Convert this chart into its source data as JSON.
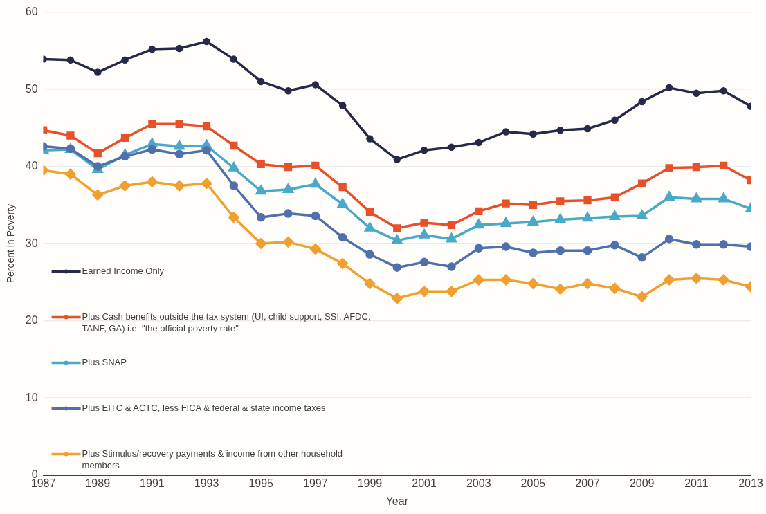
{
  "chart_data": {
    "type": "line",
    "xlabel": "Year",
    "ylabel": "Percent in Poverty",
    "x": [
      1987,
      1988,
      1989,
      1990,
      1991,
      1992,
      1993,
      1994,
      1995,
      1996,
      1997,
      1998,
      1999,
      2000,
      2001,
      2002,
      2003,
      2004,
      2005,
      2006,
      2007,
      2008,
      2009,
      2010,
      2011,
      2012,
      2013
    ],
    "xlim": [
      1987,
      2013
    ],
    "xticks": [
      1987,
      1989,
      1991,
      1993,
      1995,
      1997,
      1999,
      2001,
      2003,
      2005,
      2007,
      2009,
      2011,
      2013
    ],
    "ylim": [
      0,
      60
    ],
    "yticks": [
      0,
      10,
      20,
      30,
      40,
      50,
      60
    ],
    "grid": "y",
    "legend": "bottom left",
    "series": [
      {
        "name": "Earned Income Only",
        "color": "#262a47",
        "marker": "circle",
        "values": [
          53.9,
          53.8,
          52.2,
          53.8,
          55.2,
          55.3,
          56.2,
          53.9,
          51.0,
          49.8,
          50.6,
          47.9,
          43.6,
          40.9,
          42.1,
          42.5,
          43.1,
          44.5,
          44.2,
          44.7,
          44.9,
          46.0,
          48.4,
          50.2,
          49.5,
          49.8,
          47.8
        ]
      },
      {
        "name": "Plus Cash benefits outside the tax system (UI, child support, SSI, AFDC, TANF, GA) i.e. \"the official poverty rate\"",
        "color": "#e8502a",
        "marker": "square",
        "values": [
          44.7,
          44.0,
          41.7,
          43.7,
          45.5,
          45.5,
          45.2,
          42.7,
          40.3,
          39.9,
          40.1,
          37.3,
          34.1,
          32.0,
          32.7,
          32.4,
          34.2,
          35.2,
          35.0,
          35.5,
          35.6,
          36.0,
          37.8,
          39.8,
          39.9,
          40.1,
          38.2
        ]
      },
      {
        "name": "Plus SNAP",
        "color": "#4aa8c8",
        "marker": "triangle",
        "values": [
          42.1,
          42.2,
          39.6,
          41.5,
          42.9,
          42.6,
          42.7,
          39.8,
          36.8,
          37.0,
          37.7,
          35.1,
          32.0,
          30.4,
          31.1,
          30.6,
          32.4,
          32.6,
          32.8,
          33.1,
          33.3,
          33.5,
          33.6,
          36.0,
          35.8,
          35.8,
          34.5
        ]
      },
      {
        "name": "Plus EITC & ACTC, less FICA & federal & state income taxes",
        "color": "#4f6fad",
        "marker": "circle",
        "values": [
          42.6,
          42.3,
          40.0,
          41.3,
          42.2,
          41.6,
          42.1,
          37.5,
          33.4,
          33.9,
          33.6,
          30.8,
          28.6,
          26.9,
          27.6,
          27.0,
          29.4,
          29.6,
          28.8,
          29.1,
          29.1,
          29.8,
          28.2,
          30.6,
          29.9,
          29.9,
          29.6
        ]
      },
      {
        "name": "Plus Stimulus/recovery payments & income from other household members",
        "color": "#f0a030",
        "marker": "diamond",
        "values": [
          39.5,
          39.0,
          36.3,
          37.5,
          38.0,
          37.5,
          37.8,
          33.4,
          30.0,
          30.2,
          29.3,
          27.4,
          24.8,
          22.9,
          23.8,
          23.8,
          25.3,
          25.3,
          24.8,
          24.1,
          24.8,
          24.2,
          23.1,
          25.3,
          25.5,
          25.3,
          24.4
        ]
      }
    ]
  }
}
